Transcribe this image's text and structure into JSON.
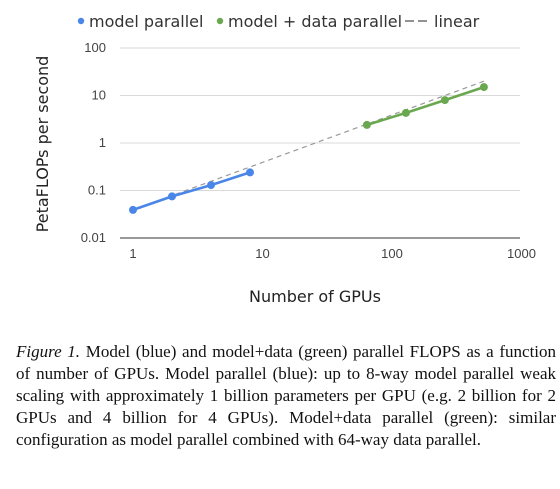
{
  "caption": {
    "figure_label": "Figure 1.",
    "text": "Model (blue) and model+data (green) parallel FLOPS as a function of number of GPUs. Model parallel (blue): up to 8-way model parallel weak scaling with approximately 1 billion parameters per GPU (e.g. 2 billion for 2 GPUs and 4 billion for 4 GPUs). Model+data parallel (green): similar configuration as model parallel combined with 64-way data parallel."
  },
  "chart_data": {
    "type": "line",
    "xscale": "log",
    "yscale": "log",
    "xlim": [
      0.5,
      1000
    ],
    "ylim": [
      0.01,
      100
    ],
    "xticks": [
      1,
      10,
      100,
      1000
    ],
    "xtick_labels": [
      "1",
      "10",
      "100",
      "1000"
    ],
    "yticks": [
      0.01,
      0.1,
      1,
      10,
      100
    ],
    "ytick_labels": [
      "0.01",
      "0.1",
      "1",
      "10",
      "100"
    ],
    "xlabel": "Number of GPUs",
    "ylabel": "PetaFLOPs per second",
    "grid": "horizontal",
    "legend_position": "top",
    "series": [
      {
        "name": "model parallel",
        "color": "#4a86e8",
        "style": "solid-markers",
        "x": [
          1,
          2,
          4,
          8
        ],
        "y": [
          0.039,
          0.075,
          0.13,
          0.24
        ]
      },
      {
        "name": "model + data parallel",
        "color": "#6aa84f",
        "style": "solid-markers",
        "x": [
          64,
          128,
          256,
          512
        ],
        "y": [
          2.4,
          4.3,
          8.0,
          15.0
        ]
      },
      {
        "name": "linear",
        "color": "#999999",
        "style": "dashed",
        "x": [
          1,
          512
        ],
        "y": [
          0.039,
          20.0
        ]
      }
    ],
    "legend": [
      {
        "label": "model parallel",
        "symbol": "dot",
        "color": "#4a86e8"
      },
      {
        "label": "model + data parallel",
        "symbol": "dot",
        "color": "#6aa84f"
      },
      {
        "label": "linear",
        "symbol": "dash",
        "color": "#777777"
      }
    ]
  }
}
